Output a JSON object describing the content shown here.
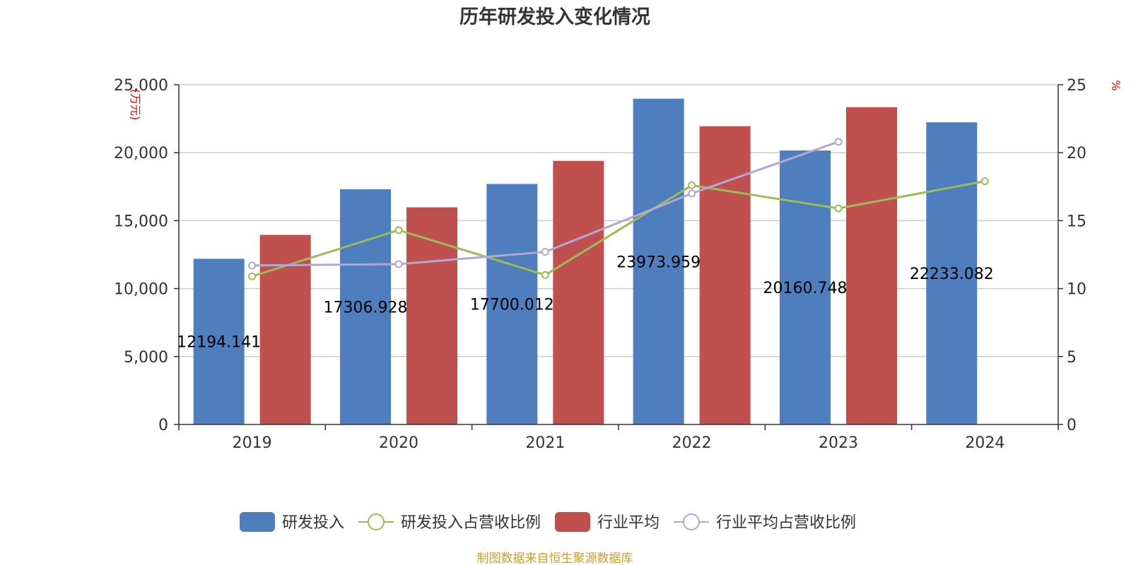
{
  "chart_data": {
    "type": "bar",
    "title": "历年研发投入变化情况",
    "categories": [
      "2019",
      "2020",
      "2021",
      "2022",
      "2023",
      "2024"
    ],
    "left_axis": {
      "unit": "(万元)",
      "ylim": [
        0,
        25000
      ],
      "ticks": [
        "0",
        "5,000",
        "10,000",
        "15,000",
        "20,000",
        "25,000"
      ],
      "tick_values": [
        0,
        5000,
        10000,
        15000,
        20000,
        25000
      ]
    },
    "right_axis": {
      "unit": "%",
      "ylim": [
        0,
        25
      ],
      "ticks": [
        "0",
        "5",
        "10",
        "15",
        "20",
        "25"
      ],
      "tick_values": [
        0,
        5,
        10,
        15,
        20,
        25
      ]
    },
    "grid": true,
    "legend_position": "bottom-center",
    "series": [
      {
        "name": "研发投入",
        "type": "bar",
        "axis": "left",
        "color": "#4e7ebd",
        "values": [
          12194.141,
          17306.928,
          17700.012,
          23973.959,
          20160.748,
          22233.082
        ],
        "labels": [
          "12194.141",
          "17306.928",
          "17700.012",
          "23973.959",
          "20160.748",
          "22233.082"
        ]
      },
      {
        "name": "研发投入占营收比例",
        "type": "line",
        "axis": "right",
        "color": "#9bbb59",
        "values": [
          10.9,
          14.3,
          11.0,
          17.6,
          15.9,
          17.9
        ]
      },
      {
        "name": "行业平均",
        "type": "bar",
        "axis": "left",
        "color": "#c0504d",
        "values": [
          13950,
          15980,
          19400,
          21950,
          23350,
          null
        ]
      },
      {
        "name": "行业平均占营收比例",
        "type": "line",
        "axis": "right",
        "color": "#b3a6d3",
        "values": [
          11.7,
          11.8,
          12.7,
          17.0,
          20.8,
          null
        ]
      }
    ],
    "source": "制图数据来自恒生聚源数据库"
  }
}
